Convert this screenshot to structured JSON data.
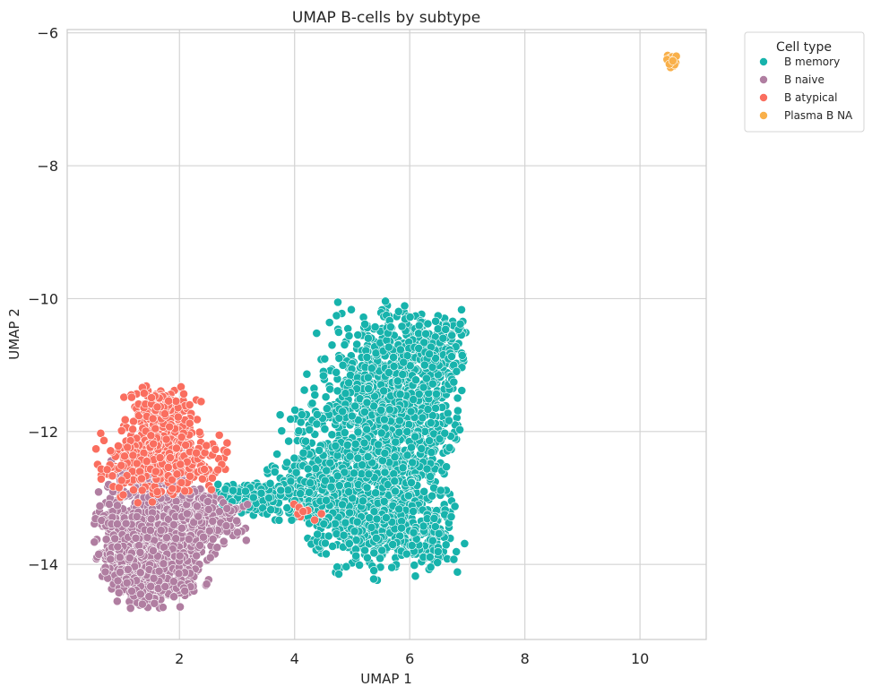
{
  "chart_data": {
    "type": "scatter",
    "title": "UMAP B-cells by subtype",
    "xlabel": "UMAP 1",
    "ylabel": "UMAP 2",
    "xlim": [
      0.05,
      11.15
    ],
    "ylim": [
      -15.13,
      -5.95
    ],
    "xticks": [
      2,
      4,
      6,
      8,
      10
    ],
    "yticks": [
      -6,
      -8,
      -10,
      -12,
      -14
    ],
    "grid": true,
    "legend": {
      "title": "Cell type",
      "placement": "outside-top-right"
    },
    "series": [
      {
        "name": "B memory",
        "color": "#17b3ac",
        "clusters": [
          {
            "type": "blob",
            "cx": 5.7,
            "cy": -11.4,
            "sx": 0.55,
            "sy": 0.6,
            "n": 700
          },
          {
            "type": "blob",
            "cx": 5.5,
            "cy": -12.6,
            "sx": 0.55,
            "sy": 0.55,
            "n": 700
          },
          {
            "type": "blob",
            "cx": 5.6,
            "cy": -13.5,
            "sx": 0.6,
            "sy": 0.3,
            "n": 400
          },
          {
            "type": "blob",
            "cx": 6.3,
            "cy": -10.8,
            "sx": 0.3,
            "sy": 0.25,
            "n": 200
          },
          {
            "type": "blob",
            "cx": 4.3,
            "cy": -12.9,
            "sx": 0.35,
            "sy": 0.25,
            "n": 250
          },
          {
            "type": "blob",
            "cx": 3.3,
            "cy": -13.0,
            "sx": 0.35,
            "sy": 0.12,
            "n": 140
          },
          {
            "type": "blob",
            "cx": 4.4,
            "cy": -12.0,
            "sx": 0.3,
            "sy": 0.4,
            "n": 80
          }
        ]
      },
      {
        "name": "B naive",
        "color": "#b07ea1",
        "clusters": [
          {
            "type": "blob",
            "cx": 1.55,
            "cy": -13.6,
            "sx": 0.45,
            "sy": 0.38,
            "n": 1000
          },
          {
            "type": "blob",
            "cx": 1.5,
            "cy": -14.2,
            "sx": 0.35,
            "sy": 0.22,
            "n": 350
          },
          {
            "type": "blob",
            "cx": 2.5,
            "cy": -13.3,
            "sx": 0.3,
            "sy": 0.2,
            "n": 200
          },
          {
            "type": "blob",
            "cx": 1.6,
            "cy": -12.6,
            "sx": 0.35,
            "sy": 0.22,
            "n": 180
          }
        ]
      },
      {
        "name": "B atypical",
        "color": "#fa6e5f",
        "clusters": [
          {
            "type": "blob",
            "cx": 1.7,
            "cy": -11.95,
            "sx": 0.3,
            "sy": 0.28,
            "n": 300
          },
          {
            "type": "blob",
            "cx": 1.3,
            "cy": -12.5,
            "sx": 0.35,
            "sy": 0.25,
            "n": 160
          },
          {
            "type": "blob",
            "cx": 2.2,
            "cy": -12.5,
            "sx": 0.3,
            "sy": 0.2,
            "n": 100
          },
          {
            "type": "blob",
            "cx": 1.6,
            "cy": -11.6,
            "sx": 0.15,
            "sy": 0.12,
            "n": 60
          },
          {
            "type": "blob",
            "cx": 4.2,
            "cy": -13.2,
            "sx": 0.15,
            "sy": 0.08,
            "n": 10
          }
        ]
      },
      {
        "name": "Plasma B NA",
        "color": "#f9b04a",
        "points": [
          [
            10.48,
            -6.34
          ],
          [
            10.52,
            -6.38
          ],
          [
            10.56,
            -6.36
          ],
          [
            10.6,
            -6.4
          ],
          [
            10.5,
            -6.44
          ],
          [
            10.55,
            -6.46
          ],
          [
            10.62,
            -6.45
          ],
          [
            10.58,
            -6.5
          ],
          [
            10.53,
            -6.52
          ],
          [
            10.47,
            -6.4
          ],
          [
            10.63,
            -6.35
          ],
          [
            10.6,
            -6.48
          ],
          [
            10.51,
            -6.47
          ],
          [
            10.57,
            -6.42
          ]
        ]
      }
    ]
  }
}
